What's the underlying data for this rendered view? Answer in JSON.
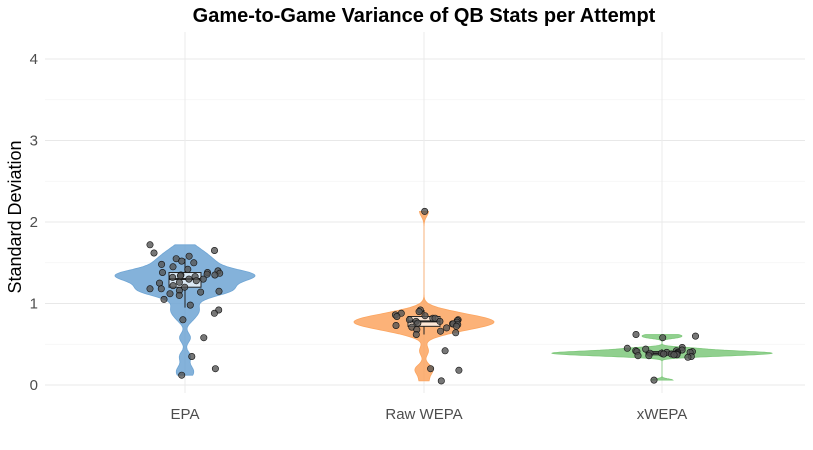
{
  "chart_data": {
    "type": "violin",
    "title": "Game-to-Game Variance of QB Stats per Attempt",
    "xlabel": "",
    "ylabel": "Standard Deviation",
    "ylim": [
      0,
      4.3
    ],
    "yticks": [
      "0",
      "1",
      "2",
      "3",
      "4"
    ],
    "grid": true,
    "legend": "none",
    "categories": [
      "EPA",
      "Raw WEPA",
      "xWEPA"
    ],
    "colors": [
      "#6fa5d4",
      "#fba560",
      "#7ec87b"
    ],
    "series": [
      {
        "category": "EPA",
        "box": {
          "q1": 1.2,
          "median": 1.3,
          "q3": 1.38,
          "whisker_low": 0.95,
          "whisker_high": 1.55
        },
        "points": [
          1.72,
          1.65,
          1.62,
          1.58,
          1.55,
          1.52,
          1.5,
          1.48,
          1.45,
          1.42,
          1.4,
          1.38,
          1.38,
          1.37,
          1.36,
          1.35,
          1.35,
          1.34,
          1.33,
          1.32,
          1.3,
          1.3,
          1.28,
          1.26,
          1.25,
          1.22,
          1.2,
          1.18,
          1.18,
          1.16,
          1.15,
          1.14,
          1.12,
          1.1,
          1.05,
          0.98,
          0.92,
          0.88,
          0.8,
          0.58,
          0.35,
          0.2,
          0.12
        ]
      },
      {
        "category": "Raw WEPA",
        "box": {
          "q1": 0.72,
          "median": 0.78,
          "q3": 0.84,
          "whisker_low": 0.62,
          "whisker_high": 0.92
        },
        "points": [
          2.13,
          0.92,
          0.9,
          0.88,
          0.86,
          0.85,
          0.84,
          0.82,
          0.82,
          0.8,
          0.8,
          0.79,
          0.78,
          0.78,
          0.77,
          0.76,
          0.75,
          0.75,
          0.74,
          0.73,
          0.72,
          0.71,
          0.7,
          0.68,
          0.66,
          0.64,
          0.62,
          0.42,
          0.2,
          0.18,
          0.05
        ]
      },
      {
        "category": "xWEPA",
        "box": {
          "q1": 0.37,
          "median": 0.39,
          "q3": 0.41,
          "whisker_low": 0.34,
          "whisker_high": 0.44
        },
        "points": [
          0.62,
          0.6,
          0.58,
          0.46,
          0.45,
          0.44,
          0.43,
          0.42,
          0.42,
          0.41,
          0.41,
          0.4,
          0.4,
          0.4,
          0.39,
          0.39,
          0.39,
          0.38,
          0.38,
          0.38,
          0.37,
          0.37,
          0.36,
          0.36,
          0.35,
          0.34,
          0.06
        ]
      }
    ]
  }
}
